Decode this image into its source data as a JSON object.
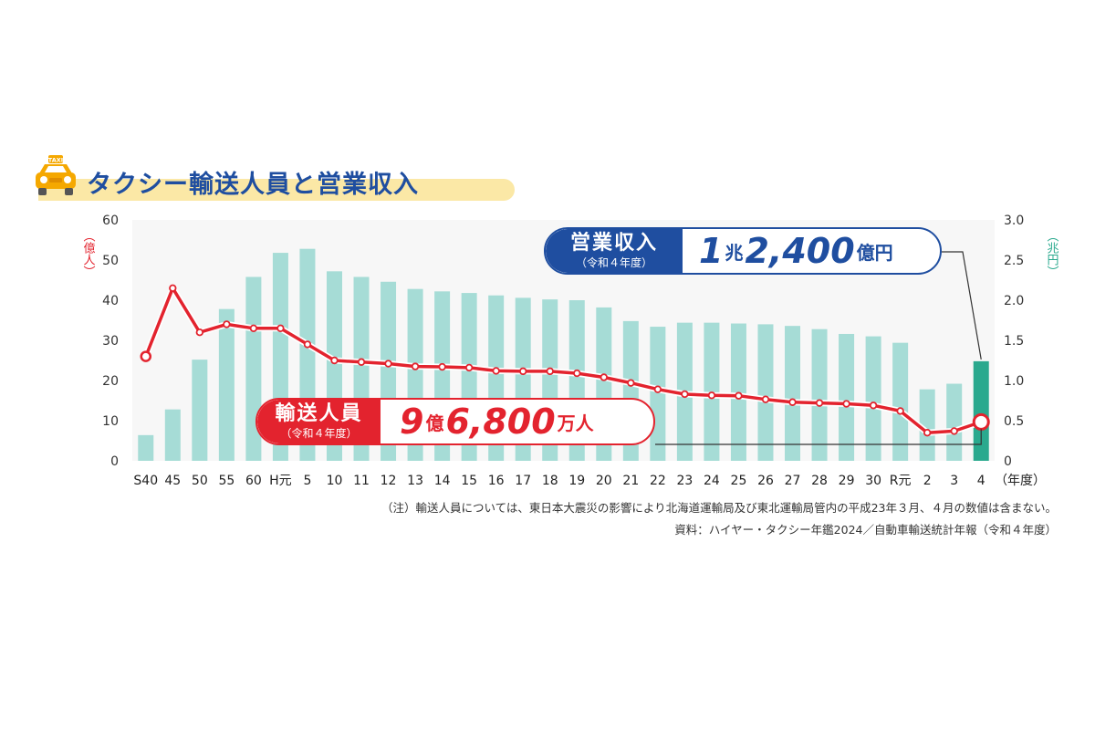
{
  "title": "タクシー輸送人員と営業収入",
  "taxi_sign": "TAXI",
  "revenue_callout": {
    "label": "営業収入",
    "sub": "（令和４年度）",
    "v1": "1",
    "u1": "兆",
    "v2": "2,400",
    "u2": "億円"
  },
  "passenger_callout": {
    "label": "輸送人員",
    "sub": "（令和４年度）",
    "v1": "9",
    "u1": "億",
    "v2": "6,800",
    "u2": "万人"
  },
  "notes": {
    "note": "（注）輸送人員については、東日本大震災の影響により北海道運輸局及び東北運輸局管内の平成23年３月、４月の数値は含まない。",
    "source": "資料：ハイヤー・タクシー年鑑2024／自動車輸送統計年報（令和４年度）"
  },
  "colors": {
    "bar": "#a6dcd6",
    "bar_highlight": "#2aa98e",
    "line": "#e3232e",
    "left_axis": "#e3232e",
    "right_axis": "#2aa98e",
    "title": "#1f4ea0",
    "band": "#fbe8a6"
  },
  "chart_data": {
    "type": "bar+line",
    "categories": [
      "S40",
      "45",
      "50",
      "55",
      "60",
      "H元",
      "5",
      "10",
      "11",
      "12",
      "13",
      "14",
      "15",
      "16",
      "17",
      "18",
      "19",
      "20",
      "21",
      "22",
      "23",
      "24",
      "25",
      "26",
      "27",
      "28",
      "29",
      "30",
      "R元",
      "2",
      "3",
      "4"
    ],
    "x_unit": "（年度）",
    "y_left": {
      "label": "（億人）",
      "ylim": [
        0,
        60
      ],
      "ticks": [
        0,
        10,
        20,
        30,
        40,
        50,
        60
      ]
    },
    "y_right": {
      "label": "（兆円）",
      "ylim": [
        0,
        3.0
      ],
      "ticks": [
        "0",
        "0.5",
        "1.0",
        "1.5",
        "2.0",
        "2.5",
        "3.0"
      ]
    },
    "series": [
      {
        "name": "営業収入",
        "type": "bar",
        "axis": "right",
        "values": [
          0.32,
          0.64,
          1.26,
          1.89,
          2.29,
          2.59,
          2.64,
          2.36,
          2.29,
          2.23,
          2.14,
          2.11,
          2.09,
          2.06,
          2.03,
          2.01,
          2.0,
          1.91,
          1.74,
          1.67,
          1.72,
          1.72,
          1.71,
          1.7,
          1.68,
          1.64,
          1.58,
          1.55,
          1.47,
          0.89,
          0.96,
          1.24
        ]
      },
      {
        "name": "輸送人員",
        "type": "line",
        "axis": "left",
        "values": [
          26,
          43,
          32,
          34,
          33,
          33,
          29,
          25,
          24.6,
          24.2,
          23.5,
          23.4,
          23.2,
          22.4,
          22.3,
          22.3,
          21.8,
          20.8,
          19.4,
          17.8,
          16.6,
          16.3,
          16.2,
          15.3,
          14.6,
          14.4,
          14.2,
          13.8,
          12.4,
          7.0,
          7.4,
          9.68
        ]
      }
    ],
    "grid": false,
    "legend": "none"
  }
}
